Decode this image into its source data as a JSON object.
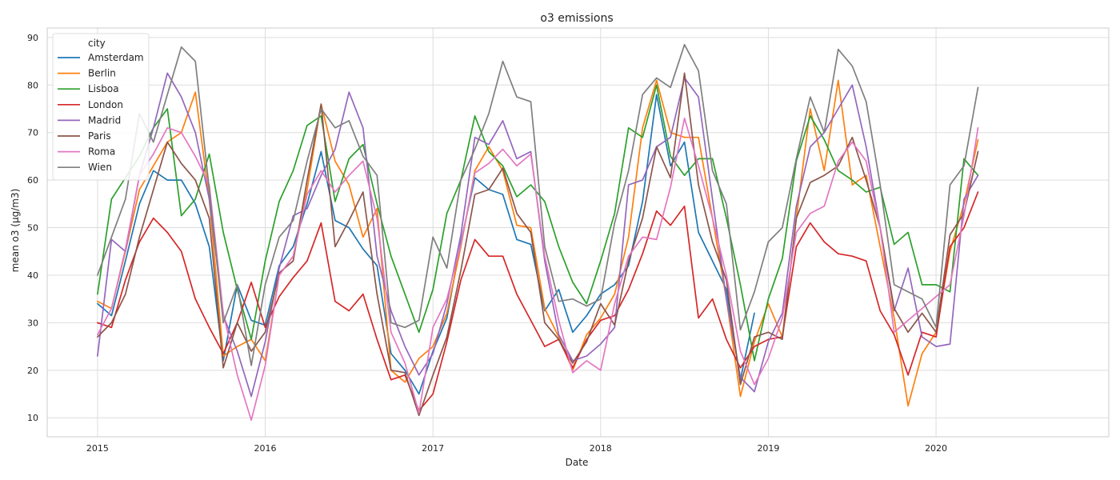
{
  "chart_data": {
    "type": "line",
    "title": "o3 emissions",
    "xlabel": "Date",
    "ylabel": "mean o3 (µg/m3)",
    "x_ticks": [
      "2015",
      "2016",
      "2017",
      "2018",
      "2019",
      "2020"
    ],
    "y_ticks": [
      "10",
      "20",
      "30",
      "40",
      "50",
      "60",
      "70",
      "80",
      "90"
    ],
    "xlim": [
      2014.7,
      2021.03
    ],
    "ylim": [
      6,
      92
    ],
    "grid": true,
    "legend": {
      "title": "city",
      "placement": "top-left"
    },
    "x": [
      "2015-01",
      "2015-02",
      "2015-03",
      "2015-04",
      "2015-05",
      "2015-06",
      "2015-07",
      "2015-08",
      "2015-09",
      "2015-10",
      "2015-11",
      "2015-12",
      "2016-01",
      "2016-02",
      "2016-03",
      "2016-04",
      "2016-05",
      "2016-06",
      "2016-07",
      "2016-08",
      "2016-09",
      "2016-10",
      "2016-11",
      "2016-12",
      "2017-01",
      "2017-02",
      "2017-03",
      "2017-04",
      "2017-05",
      "2017-06",
      "2017-07",
      "2017-08",
      "2017-09",
      "2017-10",
      "2017-11",
      "2017-12",
      "2018-01",
      "2018-02",
      "2018-03",
      "2018-04",
      "2018-05",
      "2018-06",
      "2018-07",
      "2018-08",
      "2018-09",
      "2018-10",
      "2018-11",
      "2018-12",
      "2019-01",
      "2019-02",
      "2019-03",
      "2019-04",
      "2019-05",
      "2019-06",
      "2019-07",
      "2019-08",
      "2019-09",
      "2019-10",
      "2019-11",
      "2019-12",
      "2020-01",
      "2020-02",
      "2020-03",
      "2020-04"
    ],
    "series": [
      {
        "name": "Amsterdam",
        "color": "#1f77b4",
        "values": [
          34,
          31.5,
          43,
          55,
          62,
          60,
          60,
          55,
          46,
          22,
          38,
          30.5,
          29.5,
          42,
          46,
          55,
          66,
          51.5,
          50,
          45.5,
          42,
          23.5,
          20,
          15,
          24,
          31,
          47,
          60.5,
          58,
          57,
          47.5,
          46.5,
          32.5,
          37,
          28,
          31.5,
          36,
          38,
          42,
          55.5,
          78,
          63,
          68,
          49,
          43,
          37,
          18,
          32,
          null,
          null,
          null,
          null,
          null,
          null,
          null,
          null,
          null,
          null,
          null,
          null,
          null,
          null,
          null,
          null
        ]
      },
      {
        "name": "Berlin",
        "color": "#ff7f0e",
        "values": [
          34.5,
          33,
          45,
          58,
          63,
          68,
          70,
          78.5,
          56,
          23,
          25,
          26.5,
          22,
          40,
          44,
          58,
          76,
          64,
          59,
          48,
          54,
          20,
          17.5,
          22.5,
          25,
          32,
          46,
          62,
          67,
          62,
          50.5,
          50,
          33,
          27,
          20,
          27.5,
          31,
          36,
          48,
          71,
          81,
          70,
          69,
          69,
          52,
          35,
          14.5,
          26,
          34,
          27,
          52,
          75,
          62,
          81,
          59,
          61,
          46,
          31,
          12.5,
          23.5,
          28,
          45,
          55,
          68.5
        ]
      },
      {
        "name": "Lisboa",
        "color": "#2ca02c",
        "values": [
          36,
          56,
          60.5,
          65,
          71,
          75,
          52.5,
          56,
          65.5,
          49,
          37,
          26.5,
          43,
          55.5,
          62,
          71.5,
          73.5,
          55.5,
          64.5,
          67.5,
          55,
          44,
          36,
          28,
          37,
          53,
          60,
          73.5,
          66,
          63,
          56.5,
          59,
          55.5,
          46,
          38.5,
          34,
          43,
          53,
          71,
          69,
          80,
          65,
          61,
          64.5,
          64.5,
          52,
          38,
          22,
          35,
          43.5,
          64,
          73.5,
          68.5,
          62,
          60,
          57.5,
          58.5,
          46.5,
          49,
          38,
          38,
          36.5,
          64.5,
          61
        ]
      },
      {
        "name": "London",
        "color": "#d62728",
        "values": [
          30,
          29,
          39,
          47,
          52,
          49,
          45,
          35,
          29,
          23.5,
          30,
          38.5,
          29,
          35.5,
          39.5,
          43,
          51,
          34.5,
          32.5,
          36,
          26.5,
          18,
          19,
          11.5,
          15,
          26,
          39,
          47.5,
          44,
          44,
          36,
          30.5,
          25,
          26.5,
          20.5,
          26.5,
          30.5,
          31.5,
          37,
          44.5,
          53.5,
          50.5,
          54.5,
          31,
          35,
          26.5,
          20.5,
          25,
          26.5,
          27,
          46,
          51,
          47,
          44.5,
          44,
          43,
          32.5,
          27.5,
          19,
          28,
          27,
          46,
          50,
          57.5
        ]
      },
      {
        "name": "Madrid",
        "color": "#9467bd",
        "values": [
          23,
          47.5,
          45,
          61,
          71,
          82.5,
          77.5,
          70,
          56,
          31.5,
          24,
          14.5,
          26,
          41.5,
          52.5,
          54,
          61,
          66.5,
          78.5,
          71,
          44,
          32.5,
          25,
          19,
          23.5,
          34,
          48.5,
          69,
          67.5,
          72.5,
          64.5,
          66,
          43,
          27.5,
          22,
          23,
          25.5,
          29,
          59,
          60,
          67,
          69,
          81.5,
          77.5,
          56,
          35,
          18.5,
          15.5,
          26,
          32,
          54.5,
          67,
          70,
          75,
          80,
          67,
          50,
          32.5,
          41.5,
          27,
          25,
          25.5,
          56,
          61
        ]
      },
      {
        "name": "Paris",
        "color": "#8c564b",
        "values": [
          27,
          30,
          36,
          48,
          58,
          68,
          63.5,
          60,
          52,
          20.5,
          30,
          24,
          28,
          40.5,
          43,
          60,
          76,
          46,
          51.5,
          57.5,
          36,
          20,
          19.5,
          10.5,
          19,
          27,
          41,
          57,
          58,
          62.5,
          53,
          49,
          30,
          26.5,
          21.5,
          26,
          34,
          29.5,
          43,
          52,
          67,
          60.5,
          82.5,
          59,
          47,
          39,
          17,
          27,
          28,
          26.5,
          52,
          59.5,
          61,
          63,
          69,
          60,
          50,
          33,
          28,
          32,
          28,
          48.5,
          53,
          66
        ]
      },
      {
        "name": "Roma",
        "color": "#e377c2",
        "values": [
          27.5,
          33,
          45.5,
          61,
          65.5,
          71,
          70,
          65,
          59,
          32,
          19,
          9.5,
          21,
          40,
          44,
          57,
          62,
          57.5,
          61,
          64,
          52,
          28,
          21.5,
          11,
          29,
          35,
          46.5,
          61.5,
          63.5,
          66.5,
          63,
          65.5,
          44,
          30.5,
          19.5,
          22,
          20,
          34,
          44,
          48,
          47.5,
          58.5,
          73,
          63,
          52,
          40,
          24,
          17,
          22.5,
          31,
          49,
          53,
          54.5,
          64,
          68,
          64,
          50,
          28,
          30.5,
          33,
          35.5,
          38,
          52.5,
          71
        ]
      },
      {
        "name": "Wien",
        "color": "#7f7f7f",
        "values": [
          40,
          48,
          56,
          74,
          68,
          78,
          88,
          85,
          58,
          30,
          38,
          21,
          38,
          48,
          51.5,
          64,
          75,
          71,
          72.5,
          65,
          61,
          30,
          29,
          30.5,
          48,
          41.5,
          60,
          66.5,
          74,
          85,
          77.5,
          76.5,
          46,
          34.5,
          35,
          33.5,
          35,
          51,
          62,
          78,
          81.5,
          79.5,
          88.5,
          83,
          62,
          55,
          28.5,
          36.5,
          47,
          50,
          64.5,
          77.5,
          70,
          87.5,
          84,
          76.5,
          59,
          38,
          36.5,
          35,
          29,
          59,
          63,
          79.5
        ]
      }
    ]
  }
}
